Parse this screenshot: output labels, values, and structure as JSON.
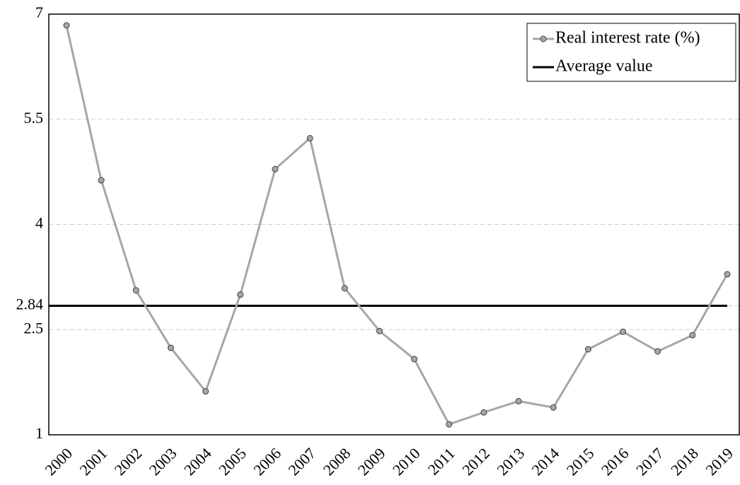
{
  "chart_data": {
    "type": "line",
    "categories": [
      "2000",
      "2001",
      "2002",
      "2003",
      "2004",
      "2005",
      "2006",
      "2007",
      "2008",
      "2009",
      "2010",
      "2011",
      "2012",
      "2013",
      "2014",
      "2015",
      "2016",
      "2017",
      "2018",
      "2019"
    ],
    "series": [
      {
        "name": "Real interest rate (%)",
        "color": "#a6a6a6",
        "values": [
          6.84,
          4.63,
          3.06,
          2.24,
          1.62,
          3.0,
          4.79,
          5.23,
          3.09,
          2.48,
          2.08,
          1.15,
          1.32,
          1.48,
          1.39,
          2.22,
          2.47,
          2.19,
          2.42,
          3.29
        ]
      }
    ],
    "hlines": [
      {
        "name": "Average value",
        "value": 2.84,
        "color": "#000000"
      }
    ],
    "ylim": [
      1,
      7
    ],
    "yticks": [
      1,
      2.5,
      2.84,
      4,
      5.5,
      7
    ],
    "grid": true,
    "legend": "top-right"
  }
}
